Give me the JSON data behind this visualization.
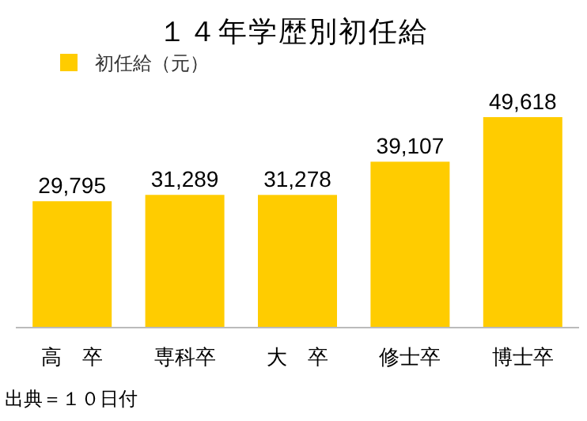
{
  "chart_data": {
    "type": "bar",
    "title": "１４年学歴別初任給",
    "categories": [
      "高　卒",
      "専科卒",
      "大　卒",
      "修士卒",
      "博士卒"
    ],
    "series": [
      {
        "name": "初任給（元）",
        "color": "#ffcc00",
        "values": [
          29795,
          31289,
          31278,
          39107,
          49618
        ],
        "value_labels": [
          "29,795",
          "31,289",
          "31,278",
          "39,107",
          "49,618"
        ]
      }
    ],
    "legend": "top left",
    "annotations": [
      "出典＝１０日付"
    ]
  }
}
